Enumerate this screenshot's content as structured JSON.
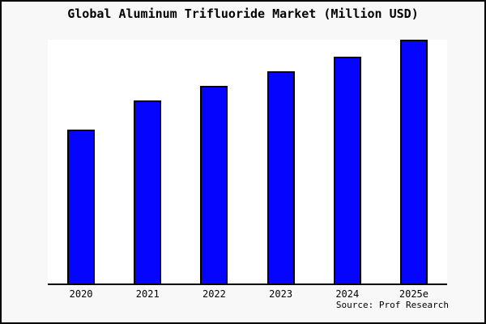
{
  "window": {
    "background_color": "#f8f8f8",
    "plot_background_color": "#ffffff",
    "frame_border_color": "#000000"
  },
  "title": "Global Aluminum Trifluoride Market (Million USD)",
  "source_label": "Source: Prof Research",
  "chart_data": {
    "type": "bar",
    "title": "Global Aluminum Trifluoride Market (Million USD)",
    "categories": [
      "2020",
      "2021",
      "2022",
      "2023",
      "2024",
      "2025e"
    ],
    "values": [
      63,
      75,
      81,
      87,
      93,
      100
    ],
    "values_note": "no y-axis scale shown in image; values estimated from bar pixel heights relative to tallest bar (2025e = 100)",
    "xlabel": "",
    "ylabel": "",
    "ylim": [
      0,
      100
    ],
    "grid": false,
    "legend": false,
    "bar_color": "#0505ff",
    "bar_edge_color": "#000000",
    "axis_spines": [
      "bottom"
    ],
    "source_annotation": "Source: Prof Research"
  }
}
